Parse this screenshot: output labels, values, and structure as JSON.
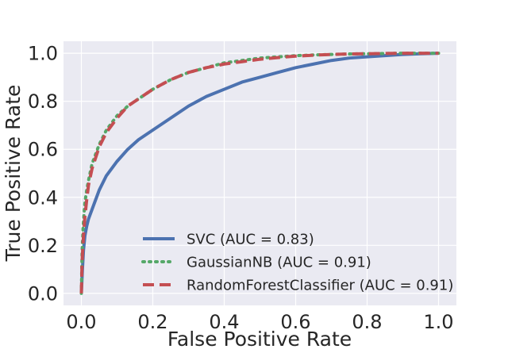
{
  "chart_data": {
    "type": "line",
    "xlabel": "False Positive Rate",
    "ylabel": "True Positive Rate",
    "xlim": [
      -0.05,
      1.05
    ],
    "ylim": [
      -0.05,
      1.05
    ],
    "x_ticks": [
      0.0,
      0.2,
      0.4,
      0.6,
      0.8,
      1.0
    ],
    "y_ticks": [
      0.0,
      0.2,
      0.4,
      0.6,
      0.8,
      1.0
    ],
    "x_tick_labels": [
      "0.0",
      "0.2",
      "0.4",
      "0.6",
      "0.8",
      "1.0"
    ],
    "y_tick_labels": [
      "0.0",
      "0.2",
      "0.4",
      "0.6",
      "0.8",
      "1.0"
    ],
    "grid": true,
    "background_color": "#eaeaf2",
    "legend_position": "lower-right",
    "series": [
      {
        "name": "SVC (AUC = 0.83)",
        "color": "#4c72b0",
        "style": "solid",
        "x": [
          0.0,
          0.003,
          0.006,
          0.01,
          0.015,
          0.02,
          0.03,
          0.05,
          0.07,
          0.1,
          0.13,
          0.16,
          0.2,
          0.25,
          0.3,
          0.35,
          0.4,
          0.45,
          0.5,
          0.55,
          0.6,
          0.65,
          0.7,
          0.75,
          0.8,
          0.85,
          0.9,
          0.95,
          1.0
        ],
        "y": [
          0.0,
          0.1,
          0.18,
          0.24,
          0.28,
          0.31,
          0.35,
          0.43,
          0.49,
          0.55,
          0.6,
          0.64,
          0.68,
          0.73,
          0.78,
          0.82,
          0.85,
          0.88,
          0.9,
          0.92,
          0.94,
          0.955,
          0.97,
          0.98,
          0.985,
          0.99,
          0.995,
          0.998,
          1.0
        ]
      },
      {
        "name": "GaussianNB (AUC = 0.91)",
        "color": "#55a868",
        "style": "dotted",
        "x": [
          0.0,
          0.002,
          0.005,
          0.01,
          0.015,
          0.02,
          0.03,
          0.05,
          0.07,
          0.1,
          0.13,
          0.16,
          0.2,
          0.25,
          0.3,
          0.35,
          0.4,
          0.45,
          0.5,
          0.55,
          0.6,
          0.65,
          0.7,
          0.75,
          0.8,
          0.85,
          0.9,
          0.95,
          1.0
        ],
        "y": [
          0.0,
          0.17,
          0.28,
          0.38,
          0.43,
          0.47,
          0.54,
          0.62,
          0.68,
          0.74,
          0.78,
          0.81,
          0.85,
          0.89,
          0.92,
          0.94,
          0.96,
          0.97,
          0.98,
          0.985,
          0.99,
          0.993,
          0.995,
          0.997,
          0.998,
          0.999,
          1.0,
          1.0,
          1.0
        ]
      },
      {
        "name": "RandomForestClassifier (AUC = 0.91)",
        "color": "#c44e52",
        "style": "dashed",
        "x": [
          0.0,
          0.002,
          0.005,
          0.01,
          0.015,
          0.02,
          0.03,
          0.05,
          0.07,
          0.1,
          0.13,
          0.16,
          0.2,
          0.25,
          0.3,
          0.35,
          0.4,
          0.45,
          0.5,
          0.55,
          0.6,
          0.65,
          0.7,
          0.75,
          0.8,
          0.85,
          0.9,
          0.95,
          1.0
        ],
        "y": [
          0.0,
          0.13,
          0.22,
          0.32,
          0.39,
          0.45,
          0.52,
          0.61,
          0.67,
          0.73,
          0.78,
          0.81,
          0.85,
          0.89,
          0.92,
          0.94,
          0.955,
          0.965,
          0.975,
          0.982,
          0.988,
          0.992,
          0.995,
          0.997,
          0.998,
          0.999,
          1.0,
          1.0,
          1.0
        ]
      }
    ]
  }
}
